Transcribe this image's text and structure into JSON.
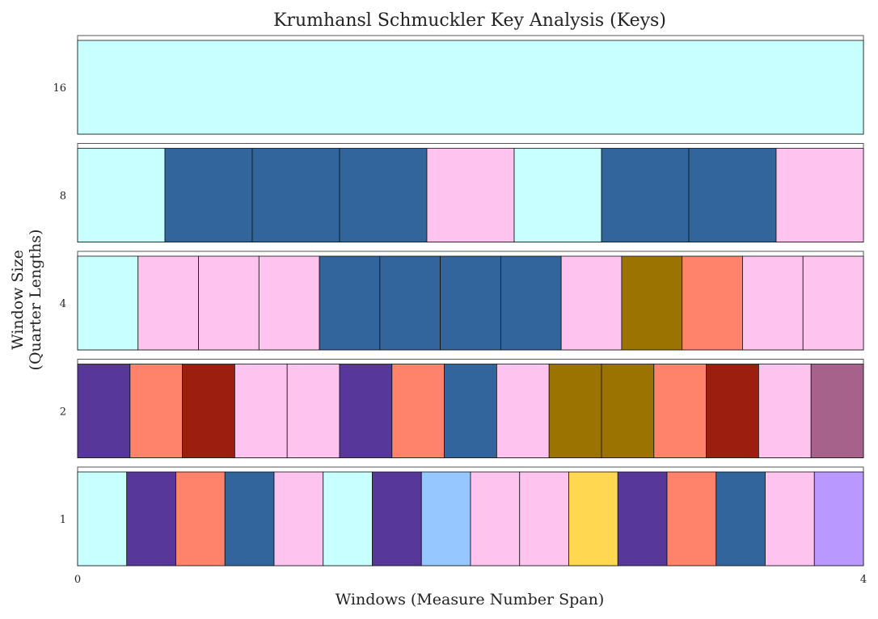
{
  "chart_data": {
    "type": "heatmap",
    "title": "Krumhansl Schmuckler Key Analysis (Keys)",
    "xlabel": "Windows (Measure Number Span)",
    "ylabel_lines": [
      "Window Size",
      "(Quarter Lengths)"
    ],
    "x_ticks": [
      "0",
      "4"
    ],
    "xlim": [
      0,
      4
    ],
    "grid": false,
    "legend": "none",
    "rows": [
      {
        "label": "16",
        "colors": [
          "#c8ffff"
        ]
      },
      {
        "label": "8",
        "colors": [
          "#c8ffff",
          "#31659b",
          "#31659b",
          "#31659b",
          "#ffc3f0",
          "#c8ffff",
          "#31659b",
          "#31659b",
          "#ffc3f0"
        ]
      },
      {
        "label": "4",
        "colors": [
          "#c8ffff",
          "#ffc3f0",
          "#ffc3f0",
          "#ffc3f0",
          "#31659b",
          "#31659b",
          "#31659b",
          "#31659b",
          "#ffc3f0",
          "#9b7300",
          "#ff826a",
          "#ffc3f0",
          "#ffc3f0"
        ]
      },
      {
        "label": "2",
        "colors": [
          "#58379b",
          "#ff826a",
          "#9b1e0e",
          "#ffc3f0",
          "#ffc3f0",
          "#58379b",
          "#ff826a",
          "#31659b",
          "#ffc3f0",
          "#9b7300",
          "#9b7300",
          "#ff826a",
          "#9b1e0e",
          "#ffc3f0",
          "#a6628a"
        ]
      },
      {
        "label": "1",
        "colors": [
          "#c8ffff",
          "#58379b",
          "#ff826a",
          "#31659b",
          "#ffc3f0",
          "#c8ffff",
          "#58379b",
          "#96c8ff",
          "#ffc3f0",
          "#ffc3f0",
          "#ffd750",
          "#58379b",
          "#ff826a",
          "#31659b",
          "#ffc3f0",
          "#b998ff"
        ]
      }
    ]
  }
}
